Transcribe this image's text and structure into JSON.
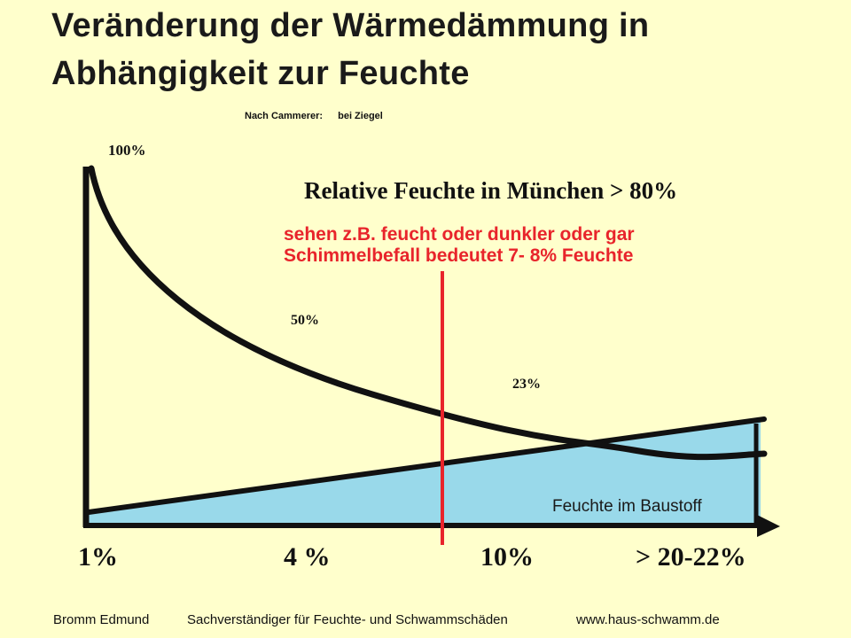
{
  "title": "Veränderung der Wärmedämmung in Abhängigkeit zur Feuchte",
  "source_note": {
    "prefix": "Nach  Cammerer:",
    "suffix": "bei Ziegel"
  },
  "heading": "Relative Feuchte in München > 80%",
  "annotation": {
    "line1": "sehen z.B. feucht oder dunkler oder gar",
    "line2": "Schimmelbefall bedeutet  7- 8%  Feuchte"
  },
  "curve_labels": {
    "top": "100%",
    "mid": "50%",
    "low": "23%"
  },
  "area_label": "Feuchte im Baustoff",
  "x_axis_labels": [
    "1%",
    "4 %",
    "10%",
    "> 20-22%"
  ],
  "footer": {
    "author": "Bromm Edmund",
    "role": "Sachverständiger für Feuchte- und Schwammschäden",
    "url": "www.haus-schwamm.de"
  },
  "colors": {
    "background": "#FFFFCC",
    "area_fill": "#99D9EA",
    "marker_line": "#E8242B",
    "axis": "#111111"
  }
}
